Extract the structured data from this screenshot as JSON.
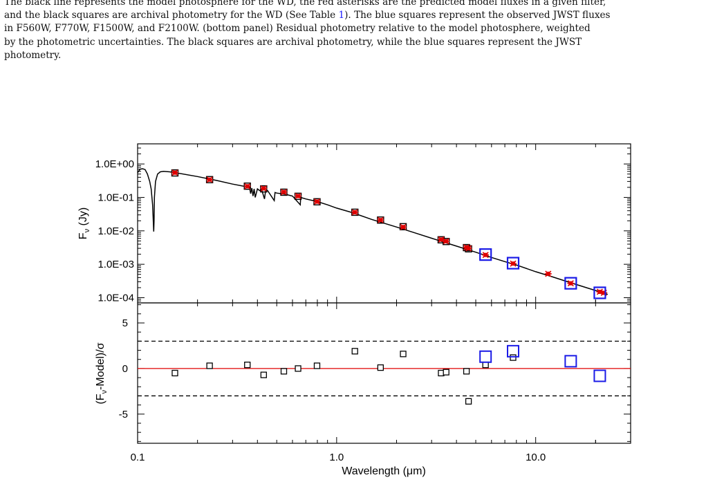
{
  "caption": {
    "line1": "The black line represents the model photosphere for the WD, the red asterisks are the predicted model fluxes in a given filter,",
    "line2_a": "and the black squares are archival photometry for the WD (See Table ",
    "line2_ref": "1",
    "line2_b": "). The blue squares represent the observed JWST fluxes",
    "line3": "in F560W, F770W, F1500W, and F2100W. (bottom panel) Residual photometry relative to the model photosphere, weighted",
    "line4": "by the photometric uncertainties.  The black squares are archival photometry, while the blue squares represent the JWST",
    "line5": "photometry."
  },
  "colors": {
    "model_line": "#000000",
    "model_flux": "#e00000",
    "archival": "#000000",
    "jwst": "#1a1ae6",
    "zero_line": "#e00000"
  },
  "chart_data": [
    {
      "type": "line",
      "panel": "top",
      "xscale": "log",
      "yscale": "log",
      "xlim": [
        0.1,
        30
      ],
      "ylim": [
        7e-05,
        4
      ],
      "ylabel": "F",
      "ylabel_sub": "ν",
      "ylabel_unit": " (Jy)",
      "yticks": [
        {
          "value": 1.0,
          "label": "1.0E+00"
        },
        {
          "value": 0.1,
          "label": "1.0E-01"
        },
        {
          "value": 0.01,
          "label": "1.0E-02"
        },
        {
          "value": 0.001,
          "label": "1.0E-03"
        },
        {
          "value": 0.0001,
          "label": "1.0E-04"
        }
      ],
      "model_photosphere": {
        "x": [
          0.1,
          0.103,
          0.106,
          0.109,
          0.112,
          0.115,
          0.117,
          0.119,
          0.1205,
          0.121,
          0.1215,
          0.123,
          0.126,
          0.13,
          0.135,
          0.145,
          0.155,
          0.2,
          0.25,
          0.3,
          0.35,
          0.365,
          0.37,
          0.375,
          0.38,
          0.385,
          0.39,
          0.4,
          0.41,
          0.42,
          0.434,
          0.44,
          0.45,
          0.486,
          0.49,
          0.5,
          0.55,
          0.6,
          0.6563,
          0.66,
          0.7,
          0.8,
          0.9,
          1.0,
          1.2,
          1.5,
          2.0,
          2.5,
          3.0,
          3.5,
          4.0,
          5.0,
          6.0,
          7.0,
          8.0,
          10.0,
          12.0,
          15.0,
          18.0,
          21.0,
          23.0
        ],
        "y": [
          0.55,
          0.7,
          0.72,
          0.68,
          0.5,
          0.3,
          0.18,
          0.06,
          0.0095,
          0.02,
          0.1,
          0.3,
          0.5,
          0.58,
          0.6,
          0.58,
          0.55,
          0.42,
          0.32,
          0.25,
          0.21,
          0.2,
          0.13,
          0.19,
          0.11,
          0.18,
          0.1,
          0.18,
          0.16,
          0.17,
          0.09,
          0.165,
          0.16,
          0.08,
          0.14,
          0.135,
          0.125,
          0.11,
          0.06,
          0.1,
          0.09,
          0.075,
          0.06,
          0.048,
          0.035,
          0.022,
          0.013,
          0.0085,
          0.006,
          0.0045,
          0.0035,
          0.0023,
          0.0016,
          0.0012,
          0.00095,
          0.0006,
          0.00043,
          0.00028,
          0.0002,
          0.00015,
          0.000125
        ]
      },
      "model_fluxes": {
        "x": [
          0.154,
          0.23,
          0.356,
          0.43,
          0.543,
          0.64,
          0.797,
          1.235,
          1.662,
          2.159,
          3.35,
          3.55,
          4.49,
          4.6,
          5.6,
          7.7,
          11.56,
          15.0,
          21.0,
          22.0
        ],
        "y": [
          0.55,
          0.34,
          0.215,
          0.185,
          0.145,
          0.11,
          0.075,
          0.036,
          0.021,
          0.013,
          0.0055,
          0.0049,
          0.0032,
          0.003,
          0.0019,
          0.00105,
          0.00052,
          0.00027,
          0.00015,
          0.00014
        ]
      },
      "archival": {
        "x": [
          0.154,
          0.23,
          0.356,
          0.43,
          0.543,
          0.64,
          0.797,
          1.235,
          1.662,
          2.159,
          3.35,
          3.55,
          4.49,
          4.6
        ],
        "y": [
          0.54,
          0.34,
          0.217,
          0.18,
          0.143,
          0.108,
          0.074,
          0.036,
          0.021,
          0.0133,
          0.0054,
          0.0048,
          0.00315,
          0.0029
        ]
      },
      "jwst": {
        "x": [
          5.6,
          7.7,
          15.0,
          21.0
        ],
        "y": [
          0.00195,
          0.00108,
          0.00027,
          0.00014
        ]
      }
    },
    {
      "type": "scatter",
      "panel": "bottom",
      "xscale": "log",
      "xlim": [
        0.1,
        30
      ],
      "ylim": [
        -8.2,
        7.2
      ],
      "xlabel": "Wavelength (μm)",
      "ylabel_a": "(F",
      "ylabel_sub": "ν",
      "ylabel_b": "-Model)/σ",
      "xticks": [
        {
          "value": 0.1,
          "label": "0.1"
        },
        {
          "value": 1.0,
          "label": "1.0"
        },
        {
          "value": 10.0,
          "label": "10.0"
        }
      ],
      "yticks": [
        {
          "value": 5,
          "label": "5"
        },
        {
          "value": 0,
          "label": "0"
        },
        {
          "value": -5,
          "label": "-5"
        }
      ],
      "reference_lines": [
        {
          "y": 3,
          "style": "dashed"
        },
        {
          "y": 0,
          "style": "solid"
        },
        {
          "y": -3,
          "style": "dashed"
        }
      ],
      "archival": {
        "x": [
          0.154,
          0.23,
          0.356,
          0.43,
          0.543,
          0.64,
          0.797,
          1.235,
          1.662,
          2.159,
          3.35,
          3.55,
          4.49,
          4.6,
          5.6,
          7.7
        ],
        "y": [
          -0.5,
          0.3,
          0.4,
          -0.7,
          -0.3,
          0.0,
          0.3,
          1.9,
          0.1,
          1.6,
          -0.5,
          -0.4,
          -0.3,
          -3.6,
          0.4,
          1.2
        ]
      },
      "jwst": {
        "x": [
          5.6,
          7.7,
          15.0,
          21.0
        ],
        "y": [
          1.3,
          1.9,
          0.8,
          -0.8
        ]
      }
    }
  ]
}
